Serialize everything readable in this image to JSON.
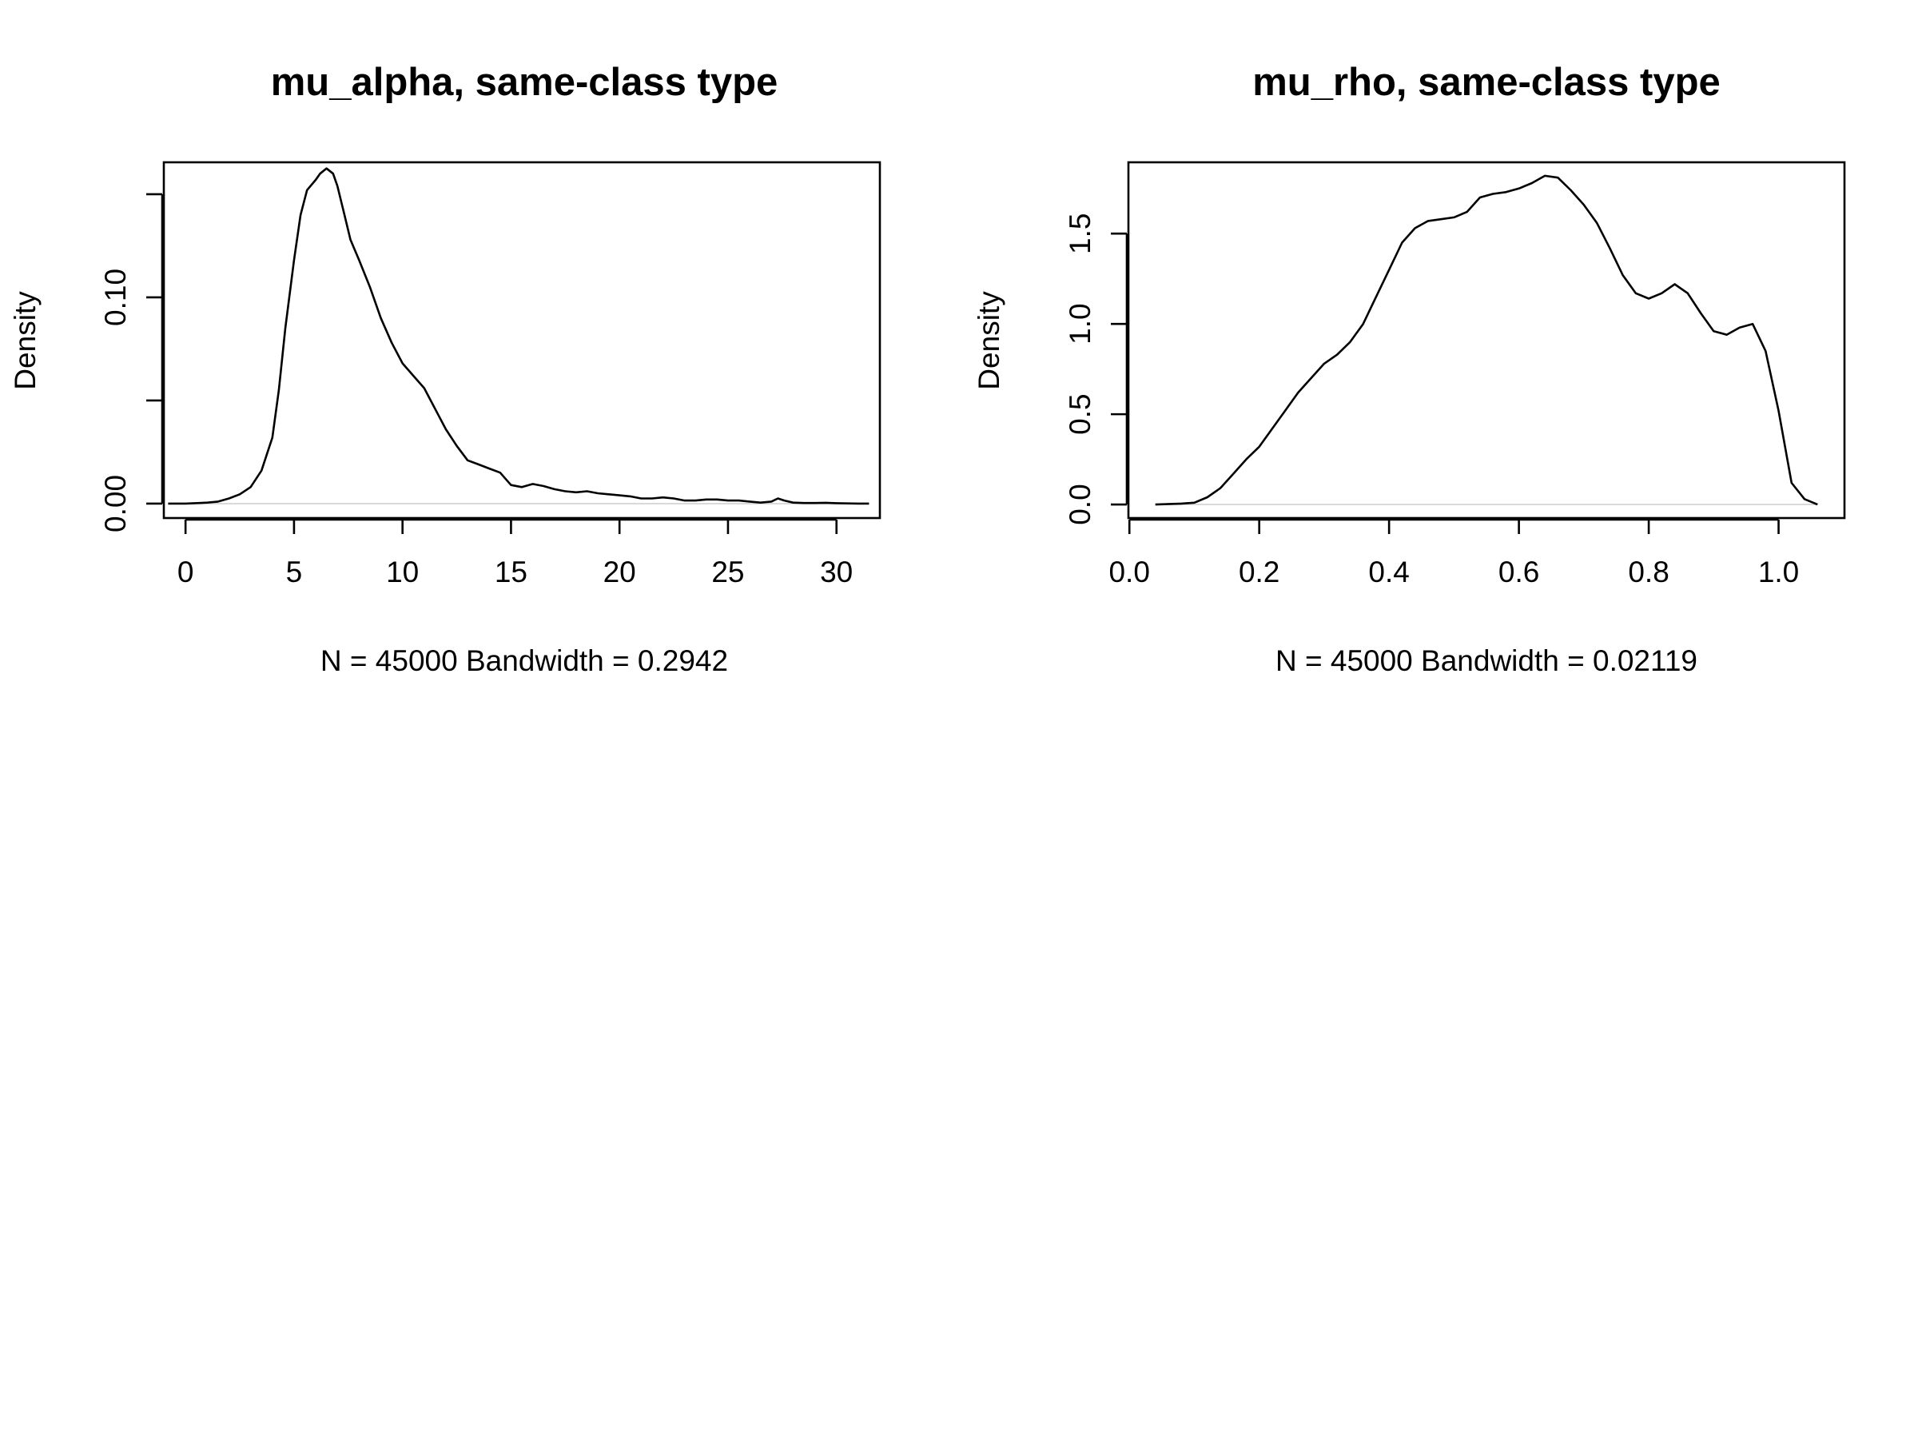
{
  "chart_data": [
    {
      "type": "line",
      "title": "mu_alpha,  same-class type",
      "xlabel": "N = 45000   Bandwidth = 0.2942",
      "ylabel": "Density",
      "xlim": [
        -1.0,
        32.0
      ],
      "ylim": [
        -0.007,
        0.1655
      ],
      "xticks": [
        0,
        5,
        10,
        15,
        20,
        25,
        30
      ],
      "xtick_labels": [
        "0",
        "5",
        "10",
        "15",
        "20",
        "25",
        "30"
      ],
      "yticks": [
        0.0,
        0.05,
        0.1,
        0.15
      ],
      "ytick_labels": [
        "0.00",
        "",
        "0.10",
        ""
      ],
      "grid": false,
      "zero_line": true,
      "series": [
        {
          "x": [
            -0.8,
            0.0,
            1.0,
            1.5,
            2.0,
            2.5,
            3.0,
            3.5,
            4.0,
            4.3,
            4.6,
            5.0,
            5.3,
            5.6,
            6.0,
            6.2,
            6.5,
            6.8,
            7.0,
            7.3,
            7.6,
            8.0,
            8.5,
            9.0,
            9.5,
            10.0,
            10.5,
            11.0,
            11.5,
            12.0,
            12.5,
            13.0,
            13.5,
            14.0,
            14.5,
            15.0,
            15.5,
            16.0,
            16.5,
            17.0,
            17.5,
            18.0,
            18.5,
            19.0,
            19.5,
            20.0,
            20.5,
            21.0,
            21.5,
            22.0,
            22.5,
            23.0,
            23.5,
            24.0,
            24.5,
            25.0,
            25.5,
            26.0,
            26.5,
            27.0,
            27.3,
            27.6,
            28.0,
            28.5,
            29.0,
            29.5,
            30.0,
            30.5,
            31.0,
            31.5
          ],
          "y": [
            0.0,
            0.0,
            0.0005,
            0.001,
            0.0025,
            0.0045,
            0.008,
            0.016,
            0.032,
            0.055,
            0.085,
            0.118,
            0.14,
            0.152,
            0.157,
            0.16,
            0.1625,
            0.16,
            0.154,
            0.141,
            0.128,
            0.118,
            0.105,
            0.09,
            0.078,
            0.068,
            0.062,
            0.056,
            0.046,
            0.036,
            0.028,
            0.021,
            0.019,
            0.017,
            0.015,
            0.009,
            0.008,
            0.0095,
            0.0085,
            0.007,
            0.006,
            0.0055,
            0.006,
            0.005,
            0.0045,
            0.004,
            0.0035,
            0.0025,
            0.0025,
            0.003,
            0.0025,
            0.0015,
            0.0015,
            0.002,
            0.002,
            0.0015,
            0.0015,
            0.001,
            0.0005,
            0.001,
            0.0025,
            0.0015,
            0.0005,
            0.0003,
            0.0003,
            0.0004,
            0.0002,
            0.0001,
            0.0,
            0.0
          ]
        }
      ]
    },
    {
      "type": "line",
      "title": "mu_rho,  same-class type",
      "xlabel": "N = 45000   Bandwidth = 0.02119",
      "ylabel": "Density",
      "xlim": [
        -0.0015,
        1.1015
      ],
      "ylim": [
        -0.075,
        1.895
      ],
      "xticks": [
        0.0,
        0.2,
        0.4,
        0.6,
        0.8,
        1.0
      ],
      "xtick_labels": [
        "0.0",
        "0.2",
        "0.4",
        "0.6",
        "0.8",
        "1.0"
      ],
      "yticks": [
        0.0,
        0.5,
        1.0,
        1.5
      ],
      "ytick_labels": [
        "0.0",
        "0.5",
        "1.0",
        "1.5"
      ],
      "grid": false,
      "zero_line": true,
      "series": [
        {
          "x": [
            0.04,
            0.08,
            0.1,
            0.12,
            0.14,
            0.16,
            0.18,
            0.2,
            0.22,
            0.24,
            0.26,
            0.28,
            0.3,
            0.32,
            0.34,
            0.36,
            0.38,
            0.4,
            0.42,
            0.44,
            0.46,
            0.48,
            0.5,
            0.52,
            0.54,
            0.56,
            0.58,
            0.6,
            0.62,
            0.64,
            0.66,
            0.68,
            0.7,
            0.72,
            0.74,
            0.76,
            0.78,
            0.8,
            0.82,
            0.84,
            0.86,
            0.88,
            0.9,
            0.92,
            0.94,
            0.96,
            0.98,
            1.0,
            1.02,
            1.04,
            1.06
          ],
          "y": [
            0.0,
            0.005,
            0.01,
            0.04,
            0.09,
            0.17,
            0.25,
            0.32,
            0.42,
            0.52,
            0.62,
            0.7,
            0.78,
            0.83,
            0.9,
            1.0,
            1.15,
            1.3,
            1.45,
            1.53,
            1.57,
            1.58,
            1.59,
            1.62,
            1.7,
            1.72,
            1.73,
            1.75,
            1.78,
            1.82,
            1.81,
            1.74,
            1.66,
            1.56,
            1.42,
            1.27,
            1.17,
            1.14,
            1.17,
            1.22,
            1.17,
            1.06,
            0.96,
            0.94,
            0.98,
            1.0,
            0.85,
            0.52,
            0.12,
            0.03,
            0.0
          ]
        }
      ]
    }
  ]
}
